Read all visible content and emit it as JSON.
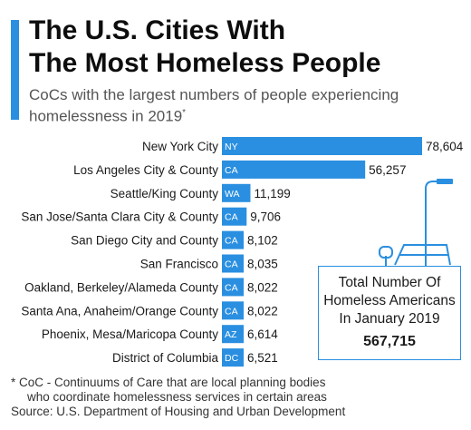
{
  "header": {
    "title_line1": "The U.S. Cities With",
    "title_line2": "The Most Homeless People",
    "subtitle_line1": "CoCs with the largest numbers of people experiencing",
    "subtitle_line2": "homelessness in 2019",
    "subtitle_mark": "*"
  },
  "colors": {
    "accent": "#2a8fe0",
    "bar": "#2a8fe0"
  },
  "chart_data": {
    "type": "bar",
    "orientation": "horizontal",
    "categories": [
      "New York City",
      "Los Angeles City & County",
      "Seattle/King County",
      "San Jose/Santa Clara City & County",
      "San Diego City and County",
      "San Francisco",
      "Oakland, Berkeley/Alameda County",
      "Santa Ana, Anaheim/Orange County",
      "Phoenix, Mesa/Maricopa County",
      "District of Columbia"
    ],
    "states": [
      "NY",
      "CA",
      "WA",
      "CA",
      "CA",
      "CA",
      "CA",
      "CA",
      "AZ",
      "DC"
    ],
    "values": [
      78604,
      56257,
      11199,
      9706,
      8102,
      8035,
      8022,
      8022,
      6614,
      6521
    ],
    "value_labels": [
      "78,604",
      "56,257",
      "11,199",
      "9,706",
      "8,102",
      "8,035",
      "8,022",
      "8,022",
      "6,614",
      "6,521"
    ],
    "title": "",
    "xlabel": "",
    "ylabel": "",
    "grid": false,
    "legend": "none"
  },
  "total_box": {
    "line1": "Total Number Of",
    "line2": "Homeless Americans",
    "line3": "In January 2019",
    "value": "567,715"
  },
  "footnote": {
    "line1": "* CoC - Continuums of Care that are local planning bodies",
    "line2": "who coordinate homelessness services in certain areas",
    "source": "Source: U.S. Department of Housing and Urban Development"
  }
}
